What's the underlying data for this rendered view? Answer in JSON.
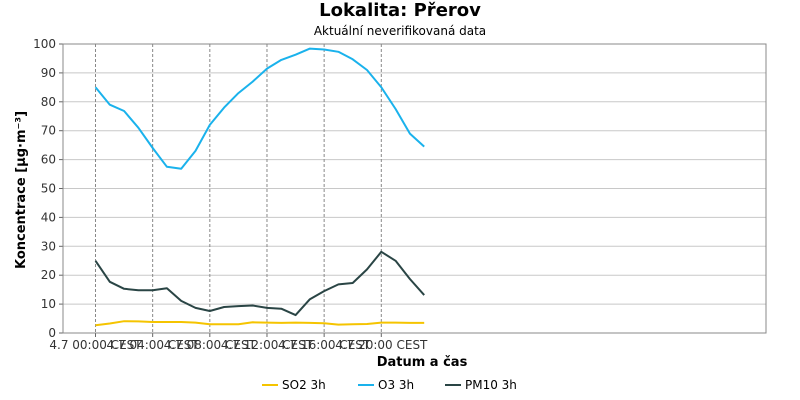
{
  "chart_data": {
    "type": "line",
    "title": "Lokalita: Přerov",
    "subtitle": "Aktuální neverifikovaná data",
    "xlabel": "Datum a čas",
    "ylabel": "Koncentrace [µg·m⁻³]",
    "x_tick_labels": [
      "4.7 00:00 CEST",
      "4.7 04:00 CEST",
      "4.7 08:00 CEST",
      "4.7 12:00 CEST",
      "4.7 16:00 CEST",
      "4.7 20:00 CEST"
    ],
    "x_hours": [
      0,
      1,
      2,
      3,
      4,
      5,
      6,
      7,
      8,
      9,
      10,
      11,
      12,
      13,
      14,
      15,
      16,
      17,
      18,
      19,
      20,
      21,
      22,
      23
    ],
    "ylim": [
      0,
      100
    ],
    "y_ticks": [
      0,
      10,
      20,
      30,
      40,
      50,
      60,
      70,
      80,
      90,
      100
    ],
    "grid": true,
    "legend_position": "bottom",
    "series": [
      {
        "name": "SO2 3h",
        "color": "#f5c400",
        "values": [
          2.7,
          3.3,
          4.1,
          4.0,
          3.8,
          3.8,
          3.8,
          3.6,
          3.0,
          3.0,
          3.0,
          3.7,
          3.6,
          3.5,
          3.6,
          3.5,
          3.4,
          2.9,
          3.0,
          3.1,
          3.6,
          3.6,
          3.5,
          3.5
        ]
      },
      {
        "name": "O3 3h",
        "color": "#1ab2ec",
        "values": [
          85,
          79,
          76.8,
          71,
          64,
          57.5,
          56.8,
          63,
          72,
          78,
          83,
          87,
          91.5,
          94.5,
          96.3,
          98.4,
          98.1,
          97.3,
          94.7,
          91,
          85,
          77.5,
          69,
          64.5
        ]
      },
      {
        "name": "PM10 3h",
        "color": "#2a4545",
        "values": [
          25,
          17.7,
          15.3,
          14.8,
          14.8,
          15.5,
          11.1,
          8.7,
          7.6,
          9.0,
          9.3,
          9.5,
          8.7,
          8.4,
          6.2,
          11.7,
          14.5,
          16.8,
          17.3,
          22,
          28.1,
          25,
          18.7,
          13.1
        ]
      }
    ]
  }
}
